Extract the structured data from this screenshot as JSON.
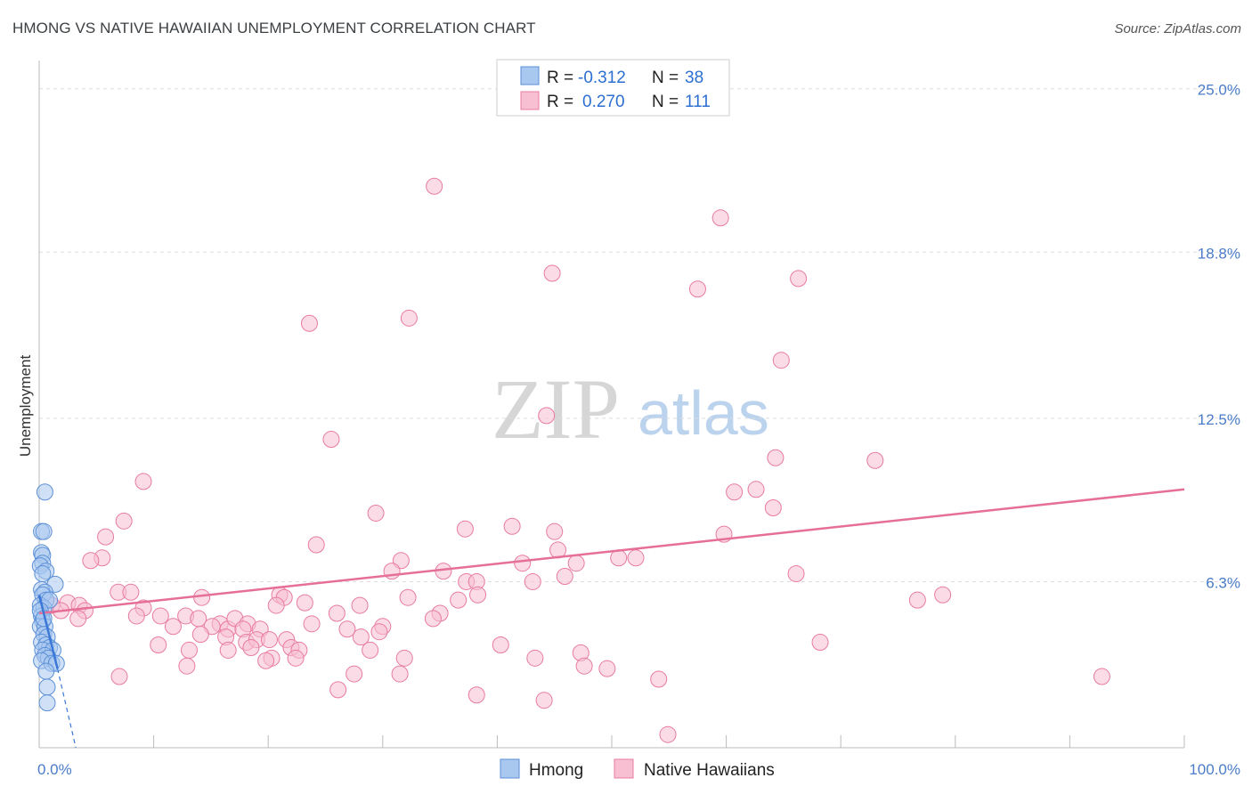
{
  "header": {
    "title": "HMONG VS NATIVE HAWAIIAN UNEMPLOYMENT CORRELATION CHART",
    "source": "Source: ZipAtlas.com"
  },
  "watermark": {
    "part1": "ZIP",
    "part2": "atlas"
  },
  "legend": {
    "rows": [
      {
        "r_label": "R =",
        "r_value": "-0.312",
        "n_label": "N =",
        "n_value": "38"
      },
      {
        "r_label": "R =",
        "r_value": "0.270",
        "n_label": "N =",
        "n_value": "111"
      }
    ]
  },
  "bottom_legend": {
    "hmong": "Hmong",
    "native": "Native Hawaiians"
  },
  "colors": {
    "hmong_fill": "#a9c8f0",
    "hmong_stroke": "#5b8fd6",
    "hmong_line": "#3b78d8",
    "native_fill": "#f7bfd1",
    "native_stroke": "#e87ba0",
    "native_line": "#e56f98",
    "grid": "#dddddd",
    "tick_text": "#4a7cc9"
  },
  "chart_data": {
    "type": "scatter",
    "title": "HMONG VS NATIVE HAWAIIAN UNEMPLOYMENT CORRELATION CHART",
    "xlabel": "",
    "ylabel": "Unemployment",
    "xlim": [
      0,
      100
    ],
    "ylim": [
      0,
      25.8
    ],
    "x_tick_labels": [
      "0.0%",
      "100.0%"
    ],
    "y_ticks": [
      6.3,
      12.5,
      18.8,
      25.0
    ],
    "y_tick_labels": [
      "6.3%",
      "12.5%",
      "18.8%",
      "25.0%"
    ],
    "series": [
      {
        "name": "Hmong",
        "r": -0.312,
        "n": 38,
        "trend": {
          "x0": 0,
          "y0": 5.8,
          "x1": 1.6,
          "y1": 3.0,
          "dash_to_x": 3.2,
          "dash_to_y": 0.0
        },
        "points": [
          [
            0.5,
            9.7
          ],
          [
            0.2,
            8.2
          ],
          [
            0.4,
            8.2
          ],
          [
            0.2,
            7.4
          ],
          [
            0.3,
            7.3
          ],
          [
            0.3,
            7.0
          ],
          [
            0.1,
            6.9
          ],
          [
            0.6,
            6.7
          ],
          [
            0.3,
            6.6
          ],
          [
            1.4,
            6.2
          ],
          [
            0.2,
            6.0
          ],
          [
            0.5,
            5.9
          ],
          [
            0.3,
            5.8
          ],
          [
            0.6,
            5.6
          ],
          [
            0.1,
            5.4
          ],
          [
            0.4,
            5.3
          ],
          [
            0.9,
            5.6
          ],
          [
            0.2,
            5.0
          ],
          [
            0.3,
            4.8
          ],
          [
            0.1,
            4.6
          ],
          [
            0.5,
            4.6
          ],
          [
            0.4,
            4.3
          ],
          [
            0.7,
            4.2
          ],
          [
            0.2,
            4.0
          ],
          [
            0.6,
            3.9
          ],
          [
            0.9,
            3.8
          ],
          [
            0.3,
            3.7
          ],
          [
            1.2,
            3.7
          ],
          [
            0.5,
            3.5
          ],
          [
            0.8,
            3.4
          ],
          [
            0.2,
            3.3
          ],
          [
            1.1,
            3.2
          ],
          [
            1.5,
            3.2
          ],
          [
            0.6,
            2.9
          ],
          [
            0.7,
            2.3
          ],
          [
            0.7,
            1.7
          ],
          [
            0.1,
            5.2
          ],
          [
            0.4,
            4.9
          ]
        ]
      },
      {
        "name": "Native Hawaiians",
        "r": 0.27,
        "n": 111,
        "trend": {
          "x0": 0,
          "y0": 5.1,
          "x1": 100,
          "y1": 9.8
        },
        "points": [
          [
            34.5,
            21.3
          ],
          [
            59.5,
            20.1
          ],
          [
            44.8,
            18.0
          ],
          [
            57.5,
            17.4
          ],
          [
            66.3,
            17.8
          ],
          [
            23.6,
            16.1
          ],
          [
            32.3,
            16.3
          ],
          [
            64.8,
            14.7
          ],
          [
            44.3,
            12.6
          ],
          [
            25.5,
            11.7
          ],
          [
            64.3,
            11.0
          ],
          [
            73.0,
            10.9
          ],
          [
            9.1,
            10.1
          ],
          [
            60.7,
            9.7
          ],
          [
            62.6,
            9.8
          ],
          [
            64.1,
            9.1
          ],
          [
            29.4,
            8.9
          ],
          [
            7.4,
            8.6
          ],
          [
            41.3,
            8.4
          ],
          [
            37.2,
            8.3
          ],
          [
            45.0,
            8.2
          ],
          [
            59.8,
            8.1
          ],
          [
            5.8,
            8.0
          ],
          [
            24.2,
            7.7
          ],
          [
            45.3,
            7.5
          ],
          [
            5.5,
            7.2
          ],
          [
            4.5,
            7.1
          ],
          [
            31.6,
            7.1
          ],
          [
            42.2,
            7.0
          ],
          [
            46.9,
            7.0
          ],
          [
            50.6,
            7.2
          ],
          [
            52.1,
            7.2
          ],
          [
            30.8,
            6.7
          ],
          [
            35.3,
            6.7
          ],
          [
            45.9,
            6.5
          ],
          [
            66.1,
            6.6
          ],
          [
            37.3,
            6.3
          ],
          [
            38.2,
            6.3
          ],
          [
            43.1,
            6.3
          ],
          [
            6.9,
            5.9
          ],
          [
            8.0,
            5.9
          ],
          [
            14.2,
            5.7
          ],
          [
            21.0,
            5.8
          ],
          [
            21.4,
            5.7
          ],
          [
            23.2,
            5.5
          ],
          [
            32.2,
            5.7
          ],
          [
            36.6,
            5.6
          ],
          [
            38.3,
            5.8
          ],
          [
            76.7,
            5.6
          ],
          [
            78.9,
            5.8
          ],
          [
            1.1,
            5.4
          ],
          [
            2.5,
            5.5
          ],
          [
            3.5,
            5.4
          ],
          [
            9.1,
            5.3
          ],
          [
            1.9,
            5.2
          ],
          [
            4.0,
            5.2
          ],
          [
            12.8,
            5.0
          ],
          [
            8.5,
            5.0
          ],
          [
            13.9,
            4.9
          ],
          [
            3.4,
            4.9
          ],
          [
            20.7,
            5.4
          ],
          [
            26.0,
            5.1
          ],
          [
            28.0,
            5.4
          ],
          [
            35.0,
            5.1
          ],
          [
            34.4,
            4.9
          ],
          [
            10.6,
            5.0
          ],
          [
            15.8,
            4.7
          ],
          [
            16.5,
            4.5
          ],
          [
            17.1,
            4.9
          ],
          [
            18.2,
            4.7
          ],
          [
            23.8,
            4.7
          ],
          [
            11.7,
            4.6
          ],
          [
            15.1,
            4.6
          ],
          [
            17.8,
            4.5
          ],
          [
            19.3,
            4.5
          ],
          [
            21.6,
            4.1
          ],
          [
            26.9,
            4.5
          ],
          [
            28.1,
            4.2
          ],
          [
            30.0,
            4.6
          ],
          [
            29.7,
            4.4
          ],
          [
            16.3,
            4.2
          ],
          [
            18.1,
            4.0
          ],
          [
            19.0,
            4.1
          ],
          [
            20.1,
            4.1
          ],
          [
            10.4,
            3.9
          ],
          [
            13.1,
            3.7
          ],
          [
            14.1,
            4.3
          ],
          [
            16.5,
            3.7
          ],
          [
            18.5,
            3.8
          ],
          [
            20.3,
            3.4
          ],
          [
            22.0,
            3.8
          ],
          [
            22.7,
            3.7
          ],
          [
            28.9,
            3.7
          ],
          [
            40.3,
            3.9
          ],
          [
            47.3,
            3.6
          ],
          [
            68.2,
            4.0
          ],
          [
            12.9,
            3.1
          ],
          [
            19.8,
            3.3
          ],
          [
            22.4,
            3.4
          ],
          [
            31.9,
            3.4
          ],
          [
            43.3,
            3.4
          ],
          [
            47.6,
            3.1
          ],
          [
            49.6,
            3.0
          ],
          [
            7.0,
            2.7
          ],
          [
            27.5,
            2.8
          ],
          [
            31.5,
            2.8
          ],
          [
            54.1,
            2.6
          ],
          [
            92.8,
            2.7
          ],
          [
            26.1,
            2.2
          ],
          [
            38.2,
            2.0
          ],
          [
            44.1,
            1.8
          ],
          [
            54.9,
            0.5
          ]
        ]
      }
    ]
  }
}
